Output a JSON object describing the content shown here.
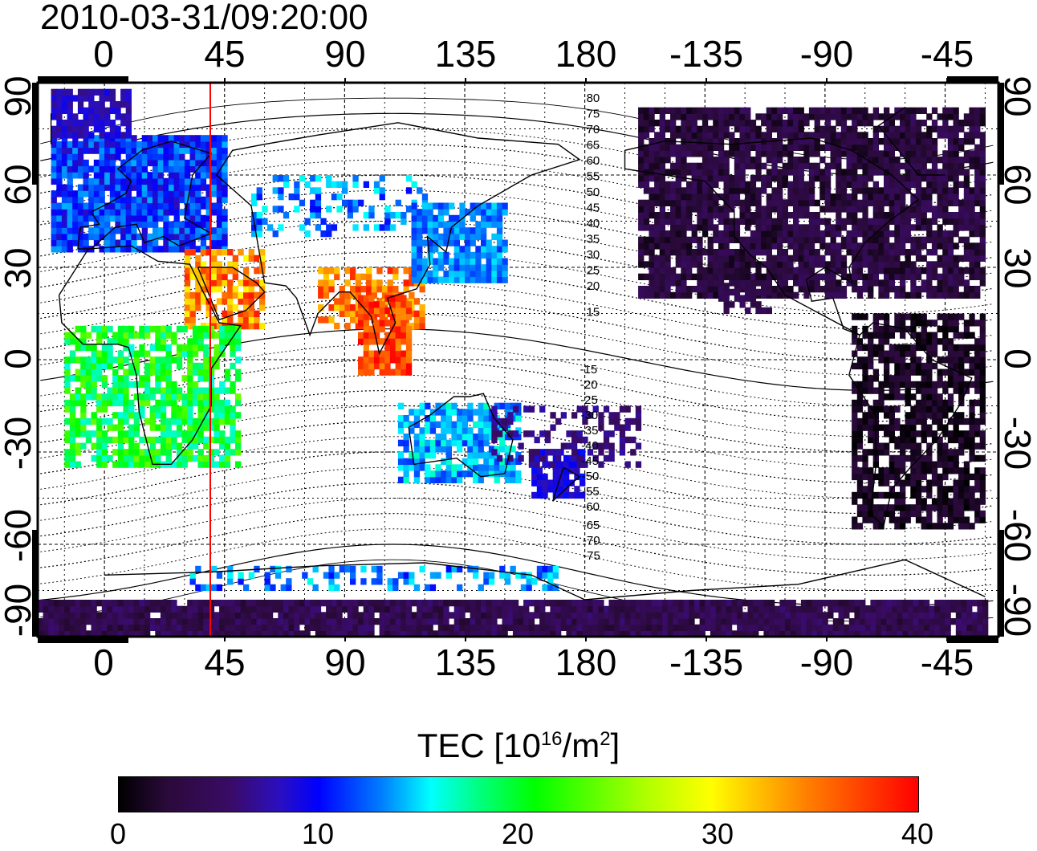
{
  "title": "2010-03-31/09:20:00",
  "lon_ticks": [
    "0",
    "45",
    "90",
    "135",
    "180",
    "-135",
    "-90",
    "-45"
  ],
  "lat_ticks": [
    "90",
    "60",
    "30",
    "0",
    "-30",
    "-60",
    "-90"
  ],
  "contour_labels_north": [
    "80",
    "75",
    "70",
    "65",
    "60",
    "55",
    "50",
    "45",
    "40",
    "35",
    "30",
    "25",
    "20",
    "15"
  ],
  "contour_labels_south": [
    "15",
    "20",
    "25",
    "30",
    "35",
    "40",
    "45",
    "50",
    "55",
    "60",
    "65",
    "70",
    "75"
  ],
  "colorbar": {
    "label_prefix": "TEC  [10",
    "label_exp1": "16",
    "label_mid": "/m",
    "label_exp2": "2",
    "label_suffix": "]",
    "ticks": [
      "0",
      "10",
      "20",
      "30",
      "40"
    ],
    "min": 0,
    "max": 40
  },
  "colors": {
    "marker_line": "#ff0000",
    "frame": "#000000"
  }
}
